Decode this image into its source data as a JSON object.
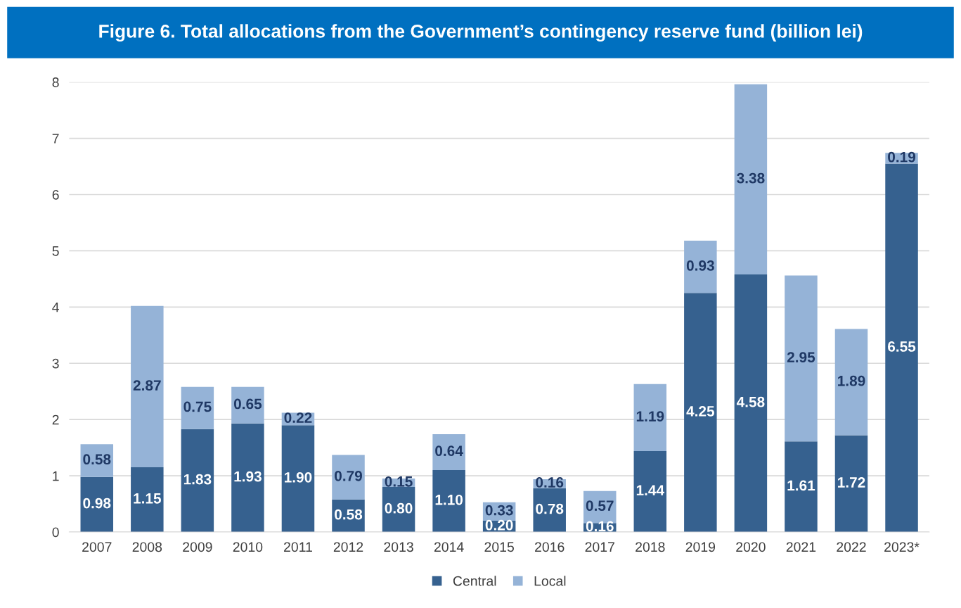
{
  "chart_data": {
    "type": "bar",
    "title": "Figure 6. Total allocations from the Government’s contingency reserve fund (billion lei)",
    "categories": [
      "2007",
      "2008",
      "2009",
      "2010",
      "2011",
      "2012",
      "2013",
      "2014",
      "2015",
      "2016",
      "2017",
      "2018",
      "2019",
      "2020",
      "2021",
      "2022",
      "2023*"
    ],
    "stacked": true,
    "series": [
      {
        "name": "Central",
        "color": "#36618f",
        "values": [
          0.98,
          1.15,
          1.83,
          1.93,
          1.9,
          0.58,
          0.8,
          1.1,
          0.2,
          0.78,
          0.16,
          1.44,
          4.25,
          4.58,
          1.61,
          1.72,
          6.55
        ],
        "value_labels": [
          "0.98",
          "1.15",
          "1.83",
          "1.93",
          "1.90",
          "0.58",
          "0.80",
          "1.10",
          "0.20",
          "0.78",
          "0.16",
          "1.44",
          "4.25",
          "4.58",
          "1.61",
          "1.72",
          "6.55"
        ]
      },
      {
        "name": "Local",
        "color": "#95b3d7",
        "values": [
          0.58,
          2.87,
          0.75,
          0.65,
          0.22,
          0.79,
          0.15,
          0.64,
          0.33,
          0.16,
          0.57,
          1.19,
          0.93,
          3.38,
          2.95,
          1.89,
          0.19
        ],
        "value_labels": [
          "0.58",
          "2.87",
          "0.75",
          "0.65",
          "0.22",
          "0.79",
          "0.15",
          "0.64",
          "0.33",
          "0.16",
          "0.57",
          "1.19",
          "0.93",
          "3.38",
          "2.95",
          "1.89",
          "0.19"
        ]
      }
    ],
    "ylim": [
      0,
      8
    ],
    "yticks": [
      0,
      1,
      2,
      3,
      4,
      5,
      6,
      7,
      8
    ],
    "grid": "y",
    "legend": "bottom"
  }
}
